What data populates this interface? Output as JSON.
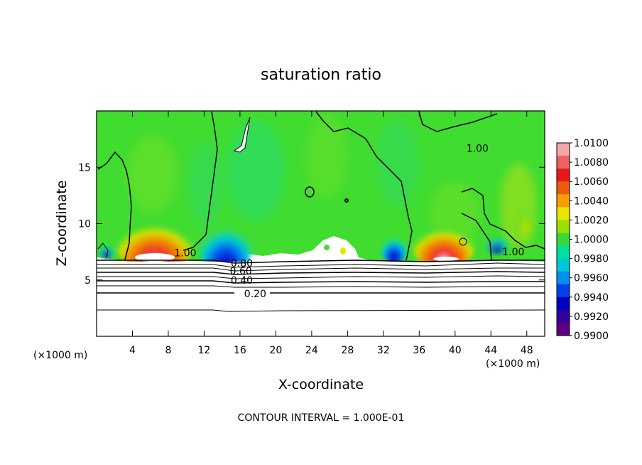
{
  "chart_data": {
    "type": "heatmap",
    "title": "saturation ratio",
    "xlabel": "X-coordinate",
    "ylabel": "Z-coordinate",
    "x_unit": "(×1000 m)",
    "y_unit": "(×1000 m)",
    "xlim": [
      0,
      50
    ],
    "ylim": [
      0,
      20
    ],
    "xticks": [
      4,
      8,
      12,
      16,
      20,
      24,
      28,
      32,
      36,
      40,
      44,
      48
    ],
    "yticks": [
      5,
      10,
      15
    ],
    "colorbar": {
      "labels": [
        "1.0100",
        "1.0080",
        "1.0060",
        "1.0040",
        "1.0020",
        "1.0000",
        "0.9980",
        "0.9960",
        "0.9940",
        "0.9920",
        "0.9900"
      ],
      "colors": [
        "#f4a7a7",
        "#f06060",
        "#e81818",
        "#ee5a10",
        "#f5a000",
        "#e6e600",
        "#9de000",
        "#38d83a",
        "#00e09a",
        "#00c8d8",
        "#0090f0",
        "#0040f0",
        "#0000c0",
        "#3000a0",
        "#600080"
      ]
    },
    "contour_labels": [
      {
        "text": "1.00",
        "x": 42.5,
        "z": 16.7
      },
      {
        "text": "1.00",
        "x": 9.9,
        "z": 7.4
      },
      {
        "text": "1.00",
        "x": 46.5,
        "z": 7.5
      },
      {
        "text": "0.80",
        "x": 16.2,
        "z": 6.5
      },
      {
        "text": "0.60",
        "x": 16.1,
        "z": 5.8
      },
      {
        "text": "0.40",
        "x": 16.2,
        "z": 5.0
      },
      {
        "text": "0.20",
        "x": 17.7,
        "z": 3.8
      }
    ],
    "footnote": "CONTOUR INTERVAL = 1.000E-01"
  }
}
